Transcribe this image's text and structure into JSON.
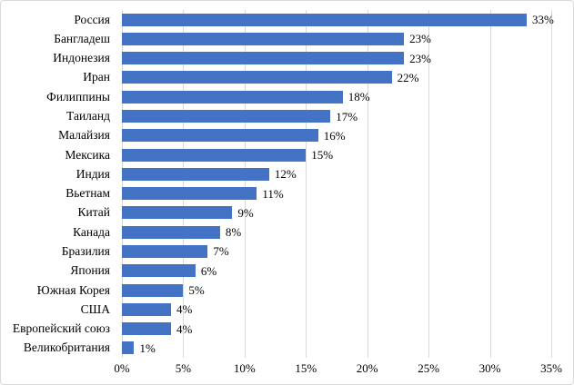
{
  "chart_data": {
    "type": "bar",
    "orientation": "horizontal",
    "title": "",
    "xlabel": "",
    "ylabel": "",
    "grid": true,
    "legend": false,
    "categories": [
      "Россия",
      "Бангладеш",
      "Индонезия",
      "Иран",
      "Филиппины",
      "Таиланд",
      "Малайзия",
      "Мексика",
      "Индия",
      "Вьетнам",
      "Китай",
      "Канада",
      "Бразилия",
      "Япония",
      "Южная Корея",
      "США",
      "Европейский союз",
      "Великобритания"
    ],
    "values": [
      33,
      23,
      23,
      22,
      18,
      17,
      16,
      15,
      12,
      11,
      9,
      8,
      7,
      6,
      5,
      4,
      4,
      1
    ],
    "value_labels": [
      "33%",
      "23%",
      "23%",
      "22%",
      "18%",
      "17%",
      "16%",
      "15%",
      "12%",
      "11%",
      "9%",
      "8%",
      "7%",
      "6%",
      "5%",
      "4%",
      "4%",
      "1%"
    ],
    "x_ticks": [
      "0%",
      "5%",
      "10%",
      "15%",
      "20%",
      "25%",
      "30%",
      "35%"
    ],
    "x_tick_values": [
      0,
      5,
      10,
      15,
      20,
      25,
      30,
      35
    ],
    "xlim": [
      0,
      35
    ],
    "colors": {
      "bar": "#4472C4",
      "gridline": "#D9D9D9",
      "border": "#D9D9D9",
      "text": "#000000",
      "background": "#FFFFFF"
    }
  }
}
